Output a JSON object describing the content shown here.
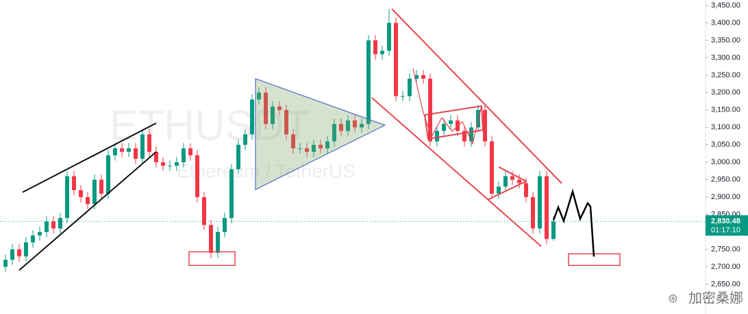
{
  "chart_data": {
    "type": "candlestick",
    "watermark": {
      "symbol": "ETHUSDT",
      "description": "Ethereum / TetherUS"
    },
    "author": "加密桑娜",
    "up_color": "#089981",
    "down_color": "#f23645",
    "ylim": [
      2564.5,
      3465.7
    ],
    "yticks": [
      {
        "value": 2650,
        "label": "2,650.00"
      },
      {
        "value": 2700,
        "label": "2,700.00"
      },
      {
        "value": 2750,
        "label": "2,750.00"
      },
      {
        "value": 2800,
        "label": "2,800.00"
      },
      {
        "value": 2850,
        "label": "2,850.00"
      },
      {
        "value": 2900,
        "label": "2,900.00"
      },
      {
        "value": 2950,
        "label": "2,950.00"
      },
      {
        "value": 3000,
        "label": "3,000.00"
      },
      {
        "value": 3050,
        "label": "3,050.00"
      },
      {
        "value": 3100,
        "label": "3,100.00"
      },
      {
        "value": 3150,
        "label": "3,150.00"
      },
      {
        "value": 3200,
        "label": "3,200.00"
      },
      {
        "value": 3250,
        "label": "3,250.00"
      },
      {
        "value": 3300,
        "label": "3,300.00"
      },
      {
        "value": 3350,
        "label": "3,350.00"
      },
      {
        "value": 3400,
        "label": "3,400.00"
      },
      {
        "value": 3450,
        "label": "3,450.00"
      }
    ],
    "grid": false,
    "last_price": {
      "value": 2830.48,
      "label": "2,830.48"
    },
    "countdown": "01:17:10",
    "ohlc": [
      [
        2700,
        2735,
        2685,
        2720
      ],
      [
        2720,
        2765,
        2705,
        2750
      ],
      [
        2750,
        2765,
        2715,
        2730
      ],
      [
        2730,
        2785,
        2715,
        2770
      ],
      [
        2770,
        2805,
        2755,
        2790
      ],
      [
        2790,
        2815,
        2775,
        2800
      ],
      [
        2800,
        2845,
        2785,
        2830
      ],
      [
        2830,
        2845,
        2795,
        2810
      ],
      [
        2810,
        2855,
        2795,
        2840
      ],
      [
        2840,
        2975,
        2825,
        2960
      ],
      [
        2960,
        2975,
        2905,
        2920
      ],
      [
        2920,
        2935,
        2885,
        2900
      ],
      [
        2900,
        2915,
        2865,
        2880
      ],
      [
        2880,
        2965,
        2865,
        2950
      ],
      [
        2950,
        2965,
        2895,
        2910
      ],
      [
        2910,
        3035,
        2895,
        3020
      ],
      [
        3020,
        3055,
        3005,
        3040
      ],
      [
        3040,
        3055,
        3015,
        3030
      ],
      [
        3030,
        3055,
        3015,
        3040
      ],
      [
        3040,
        3055,
        2995,
        3010
      ],
      [
        3010,
        3095,
        2995,
        3080
      ],
      [
        3080,
        3095,
        3015,
        3030
      ],
      [
        3030,
        3045,
        2985,
        3000
      ],
      [
        3000,
        3015,
        2975,
        2990
      ],
      [
        2990,
        3005,
        2975,
        2990
      ],
      [
        2990,
        3015,
        2975,
        3000
      ],
      [
        3000,
        3055,
        2985,
        3040
      ],
      [
        3040,
        3055,
        3005,
        3020
      ],
      [
        3020,
        3035,
        2885,
        2900
      ],
      [
        2900,
        2915,
        2805,
        2820
      ],
      [
        2820,
        2835,
        2725,
        2740
      ],
      [
        2740,
        2815,
        2725,
        2800
      ],
      [
        2800,
        2855,
        2785,
        2840
      ],
      [
        2840,
        2995,
        2825,
        2980
      ],
      [
        2980,
        3065,
        2965,
        3050
      ],
      [
        3050,
        3095,
        3035,
        3080
      ],
      [
        3080,
        3195,
        3065,
        3180
      ],
      [
        3180,
        3215,
        3165,
        3200
      ],
      [
        3200,
        3215,
        3095,
        3110
      ],
      [
        3110,
        3175,
        3095,
        3160
      ],
      [
        3160,
        3175,
        3135,
        3150
      ],
      [
        3150,
        3165,
        3065,
        3080
      ],
      [
        3080,
        3095,
        3025,
        3040
      ],
      [
        3040,
        3055,
        3025,
        3040
      ],
      [
        3040,
        3055,
        3015,
        3030
      ],
      [
        3030,
        3065,
        3015,
        3050
      ],
      [
        3050,
        3065,
        3025,
        3040
      ],
      [
        3040,
        3075,
        3025,
        3060
      ],
      [
        3060,
        3125,
        3045,
        3110
      ],
      [
        3110,
        3125,
        3075,
        3090
      ],
      [
        3090,
        3135,
        3075,
        3120
      ],
      [
        3120,
        3135,
        3085,
        3100
      ],
      [
        3100,
        3125,
        3085,
        3110
      ],
      [
        3110,
        3365,
        3095,
        3350
      ],
      [
        3350,
        3365,
        3295,
        3310
      ],
      [
        3310,
        3335,
        3295,
        3320
      ],
      [
        3320,
        3440,
        3305,
        3400
      ],
      [
        3400,
        3415,
        3175,
        3190
      ],
      [
        3190,
        3205,
        3175,
        3190
      ],
      [
        3190,
        3255,
        3175,
        3240
      ],
      [
        3240,
        3265,
        3225,
        3250
      ],
      [
        3250,
        3265,
        3225,
        3240
      ],
      [
        3240,
        3255,
        3045,
        3060
      ],
      [
        3060,
        3105,
        3045,
        3090
      ],
      [
        3090,
        3125,
        3075,
        3110
      ],
      [
        3110,
        3135,
        3095,
        3120
      ],
      [
        3120,
        3135,
        3075,
        3090
      ],
      [
        3090,
        3105,
        3045,
        3060
      ],
      [
        3060,
        3115,
        3045,
        3100
      ],
      [
        3100,
        3165,
        3085,
        3150
      ],
      [
        3150,
        3165,
        3045,
        3060
      ],
      [
        3060,
        3075,
        2895,
        2910
      ],
      [
        2910,
        2945,
        2895,
        2930
      ],
      [
        2930,
        2975,
        2915,
        2960
      ],
      [
        2960,
        2975,
        2935,
        2950
      ],
      [
        2950,
        2965,
        2925,
        2940
      ],
      [
        2940,
        2955,
        2885,
        2900
      ],
      [
        2900,
        2915,
        2795,
        2810
      ],
      [
        2810,
        2975,
        2795,
        2960
      ],
      [
        2960,
        2975,
        2765,
        2780
      ],
      [
        2780,
        2845,
        2775,
        2830.48
      ]
    ]
  }
}
